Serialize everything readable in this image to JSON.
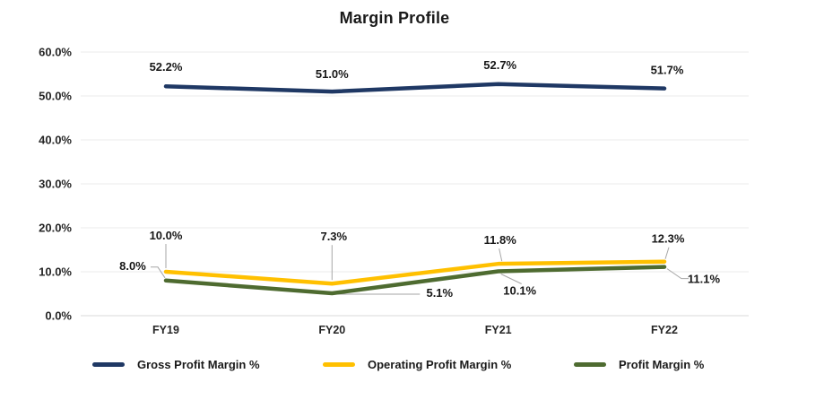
{
  "title": "Margin Profile",
  "chart_data": {
    "type": "line",
    "title": "Margin Profile",
    "categories": [
      "FY19",
      "FY20",
      "FY21",
      "FY22"
    ],
    "series": [
      {
        "name": "Gross Profit Margin %",
        "color": "#1f3864",
        "values": [
          52.2,
          51.0,
          52.7,
          51.7
        ],
        "labels": [
          "52.2%",
          "51.0%",
          "52.7%",
          "51.7%"
        ]
      },
      {
        "name": "Operating Profit Margin %",
        "color": "#ffc000",
        "values": [
          10.0,
          7.3,
          11.8,
          12.3
        ],
        "labels": [
          "10.0%",
          "7.3%",
          "11.8%",
          "12.3%"
        ]
      },
      {
        "name": "Profit Margin %",
        "color": "#4e6b30",
        "values": [
          8.0,
          5.1,
          10.1,
          11.1
        ],
        "labels": [
          "8.0%",
          "5.1%",
          "10.1%",
          "11.1%"
        ]
      }
    ],
    "xlabel": "",
    "ylabel": "",
    "ylim": [
      0,
      60
    ],
    "ytick_step": 10,
    "ytick_labels": [
      "0.0%",
      "10.0%",
      "20.0%",
      "30.0%",
      "40.0%",
      "50.0%",
      "60.0%"
    ],
    "grid": true,
    "legend_position": "bottom",
    "data_labels_on": true
  },
  "colors": {
    "gridline": "#ebebeb",
    "axis_line": "#d9d9d9",
    "leader_line": "#a6a6a6",
    "tick_text": "#262626",
    "label_text": "#171717"
  }
}
